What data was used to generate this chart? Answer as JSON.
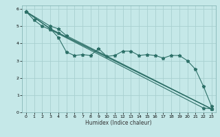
{
  "xlabel": "Humidex (Indice chaleur)",
  "ylabel": "",
  "bg_color": "#c5e8e8",
  "grid_color": "#a8d0d0",
  "line_color": "#2d7068",
  "xlim": [
    -0.5,
    23.5
  ],
  "ylim": [
    0,
    6.2
  ],
  "xticks": [
    0,
    1,
    2,
    3,
    4,
    5,
    6,
    7,
    8,
    9,
    10,
    11,
    12,
    13,
    14,
    15,
    16,
    17,
    18,
    19,
    20,
    21,
    22,
    23
  ],
  "yticks": [
    0,
    1,
    2,
    3,
    4,
    5,
    6
  ],
  "series": [
    {
      "x": [
        0,
        1,
        2,
        3,
        22,
        23
      ],
      "y": [
        5.85,
        5.35,
        5.0,
        4.8,
        0.25,
        0.2
      ]
    },
    {
      "x": [
        0,
        3,
        4,
        5,
        6,
        7,
        8,
        9,
        10,
        11,
        12,
        13,
        14,
        15,
        16,
        17,
        18,
        19,
        20,
        21,
        22,
        23
      ],
      "y": [
        5.85,
        4.85,
        4.35,
        3.5,
        3.3,
        3.35,
        3.3,
        3.7,
        3.25,
        3.3,
        3.55,
        3.55,
        3.3,
        3.35,
        3.3,
        3.15,
        3.3,
        3.3,
        3.0,
        2.5,
        1.5,
        0.35
      ]
    },
    {
      "x": [
        0,
        3,
        23
      ],
      "y": [
        5.85,
        4.85,
        0.2
      ]
    },
    {
      "x": [
        0,
        3,
        4,
        23
      ],
      "y": [
        5.85,
        4.85,
        4.6,
        0.2
      ]
    },
    {
      "x": [
        0,
        3,
        4,
        5,
        23
      ],
      "y": [
        5.85,
        5.0,
        4.85,
        4.45,
        0.2
      ]
    }
  ]
}
